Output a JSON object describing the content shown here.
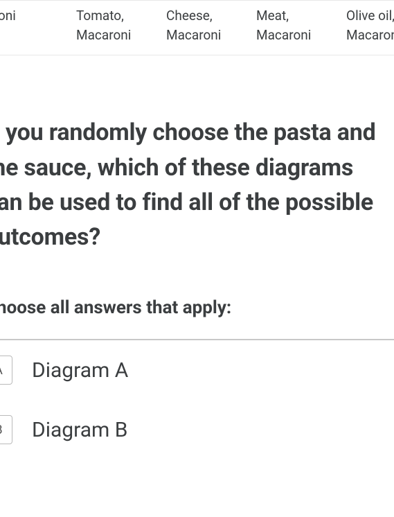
{
  "table": {
    "row": [
      "acaroni",
      "Tomato,\nMacaroni",
      "Cheese,\nMacaroni",
      "Meat,\nMacaroni",
      "Olive oil,\nMacaroni"
    ],
    "colors": {
      "border": "#e8e8e8",
      "text": "#3b3e40"
    },
    "fontsize": 19
  },
  "question": {
    "text": "If you randomly choose the pasta and the sauce, which of these diagrams can be used to find all of the possible outcomes?",
    "fontsize": 34,
    "fontweight": 700,
    "color": "#3b3e40"
  },
  "instruction": {
    "text": "Choose all answers that apply:",
    "fontsize": 26,
    "fontweight": 700,
    "color": "#3b3e40"
  },
  "choices": {
    "divider_color": "#c8c8c8",
    "items": [
      {
        "letter": "A",
        "label": "Diagram A"
      },
      {
        "letter": "B",
        "label": "Diagram B"
      }
    ],
    "letter_box": {
      "border_color": "#bababa",
      "border_radius": 4,
      "fontsize": 18,
      "text_color": "#555555"
    },
    "label_fontsize": 30
  },
  "background_color": "#ffffff"
}
